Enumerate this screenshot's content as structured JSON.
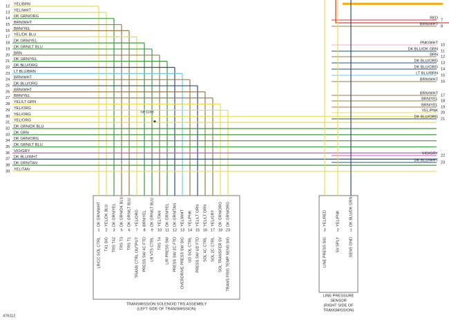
{
  "left_wires": [
    {
      "num": "12",
      "label": "YEL/BRN"
    },
    {
      "num": "13",
      "label": "YEL/WHT"
    },
    {
      "num": "14",
      "label": "DK GRN/ORG"
    },
    {
      "num": "15",
      "label": "BRN/WHT"
    },
    {
      "num": "16",
      "label": "BRN/YEL"
    },
    {
      "num": "17",
      "label": "YEL/DK BLU"
    },
    {
      "num": "18",
      "label": "DK GRN/YEL"
    },
    {
      "num": "19",
      "label": "DK GRN/LT BLU"
    },
    {
      "num": "20",
      "label": "BRN"
    },
    {
      "num": "21",
      "label": "DK GRN/YEL"
    },
    {
      "num": "22",
      "label": "DK BLU/ORG"
    },
    {
      "num": "23",
      "label": "LT BLU/BRN"
    },
    {
      "num": "24",
      "label": "BRN/WHT"
    },
    {
      "num": "25",
      "label": "DK BLU/ORG"
    },
    {
      "num": "26",
      "label": "BRN/WHT"
    },
    {
      "num": "27",
      "label": "BRN/YEL"
    },
    {
      "num": "28",
      "label": "YEL/LT GRN"
    },
    {
      "num": "29",
      "label": "YEL/ORG"
    },
    {
      "num": "30",
      "label": "YEL/ORG"
    },
    {
      "num": "31",
      "label": "YEL/ORG"
    },
    {
      "num": "32",
      "label": "DK GRN/DK BLU"
    },
    {
      "num": "33",
      "label": "DK GRN"
    },
    {
      "num": "34",
      "label": "DK GRN/ORG"
    },
    {
      "num": "35",
      "label": "DK GRN/LT BLU"
    },
    {
      "num": "36",
      "label": "VIO/GRY"
    },
    {
      "num": "37",
      "label": "DK BLU/WHT"
    },
    {
      "num": "38",
      "label": "DK GRN/TAN"
    },
    {
      "num": "39",
      "label": "YEL/TAN"
    }
  ],
  "right_wires": [
    {
      "num": "7",
      "label": "RED"
    },
    {
      "num": "8",
      "label": "BRN/WHT"
    },
    {
      "num": "10",
      "label": "PNK/WHT"
    },
    {
      "num": "11",
      "label": "DK BLU/DK GRN"
    },
    {
      "num": "12",
      "label": "BRN"
    },
    {
      "num": "13",
      "label": "DK BLU/ORG"
    },
    {
      "num": "14",
      "label": "DK BLU/ORG"
    },
    {
      "num": "15",
      "label": "LT BLU/BRN"
    },
    {
      "num": "16",
      "label": "BRN/WHT"
    },
    {
      "num": "17",
      "label": "BRN/WHT"
    },
    {
      "num": "18",
      "label": "BRN/YEL"
    },
    {
      "num": "19",
      "label": "BRN/YEL"
    },
    {
      "num": "20",
      "label": "YEL/PNK"
    },
    {
      "num": "21",
      "label": "DK BLU/ORG"
    },
    {
      "num": "22",
      "label": "VIO/GRY"
    },
    {
      "num": "23",
      "label": "DK BLU/WHT"
    }
  ],
  "splice": "SP1183",
  "solenoid_pins": [
    {
      "pin": "1",
      "wire": "DK GRN/WHT",
      "function": "LR/CC SOL CTRL"
    },
    {
      "pin": "2",
      "wire": "YEL/DK BLU",
      "function": "T41 SIG"
    },
    {
      "pin": "3",
      "wire": "DK GRN/YEL",
      "function": "TRS T42"
    },
    {
      "pin": "5",
      "wire": "DK GRN/DK BLU",
      "function": "TRS T3"
    },
    {
      "pin": "6",
      "wire": "DK GRN/LT BLU",
      "function": "TRS T1"
    },
    {
      "pin": "7",
      "wire": "YEL/ORG",
      "function": "TRANS CTRL OUTPUT"
    },
    {
      "pin": "8",
      "wire": "BRN/YEL",
      "function": "PRESS SW 4C FTD"
    },
    {
      "pin": "9",
      "wire": "DK GRN/LT BLU",
      "function": "LR VTS CTRL"
    },
    {
      "pin": "10",
      "wire": "YEL/TAN",
      "function": "TRS T4"
    },
    {
      "pin": "11",
      "wire": "DK GRN/YEL",
      "function": "L/R PRESS SW"
    },
    {
      "pin": "12",
      "wire": "DK GRN/TAN",
      "function": "PRESS SW 2C FTD"
    },
    {
      "pin": "13",
      "wire": "YEL/WHT",
      "function": "OVERDRIVE PRESS SW SIG"
    },
    {
      "pin": "14",
      "wire": "YEL/PNK",
      "function": "UD SOL CTRL"
    },
    {
      "pin": "15",
      "wire": "YEL/LT GRN",
      "function": "PRESS SW UD FTD"
    },
    {
      "pin": "16",
      "wire": "YEL/LT GRN",
      "function": "SOL 4C CTRL"
    },
    {
      "pin": "17",
      "wire": "YEL/GRY",
      "function": "SOL 2C CTRL"
    },
    {
      "pin": "18",
      "wire": "DK GRN/ORG",
      "function": "SOL TRANSFER 5V"
    },
    {
      "pin": "23",
      "wire": "DK GRN/ORG",
      "function": "TRANS FRIG TEMP SENS SIG"
    }
  ],
  "solenoid_box": [
    "TRANSMISSION SOLENOID TRS ASSEMBLY",
    "(LEFT SIDE OF TRANSMISSION)"
  ],
  "sensor_pins": [
    {
      "pin": "3",
      "wire": "YEL/RED",
      "function": "LINE PRESS SIG"
    },
    {
      "pin": "2",
      "wire": "YEL/PNK",
      "function": "5V SPLY"
    },
    {
      "pin": "1",
      "wire": "DK BLU/DK GRN",
      "function": "SENS GND"
    }
  ],
  "sensor_box": [
    "LINE PRESSURE",
    "SENSOR",
    "(RIGHT SIDE OF",
    "TRANSMISSION)"
  ],
  "figure_id": "476112"
}
